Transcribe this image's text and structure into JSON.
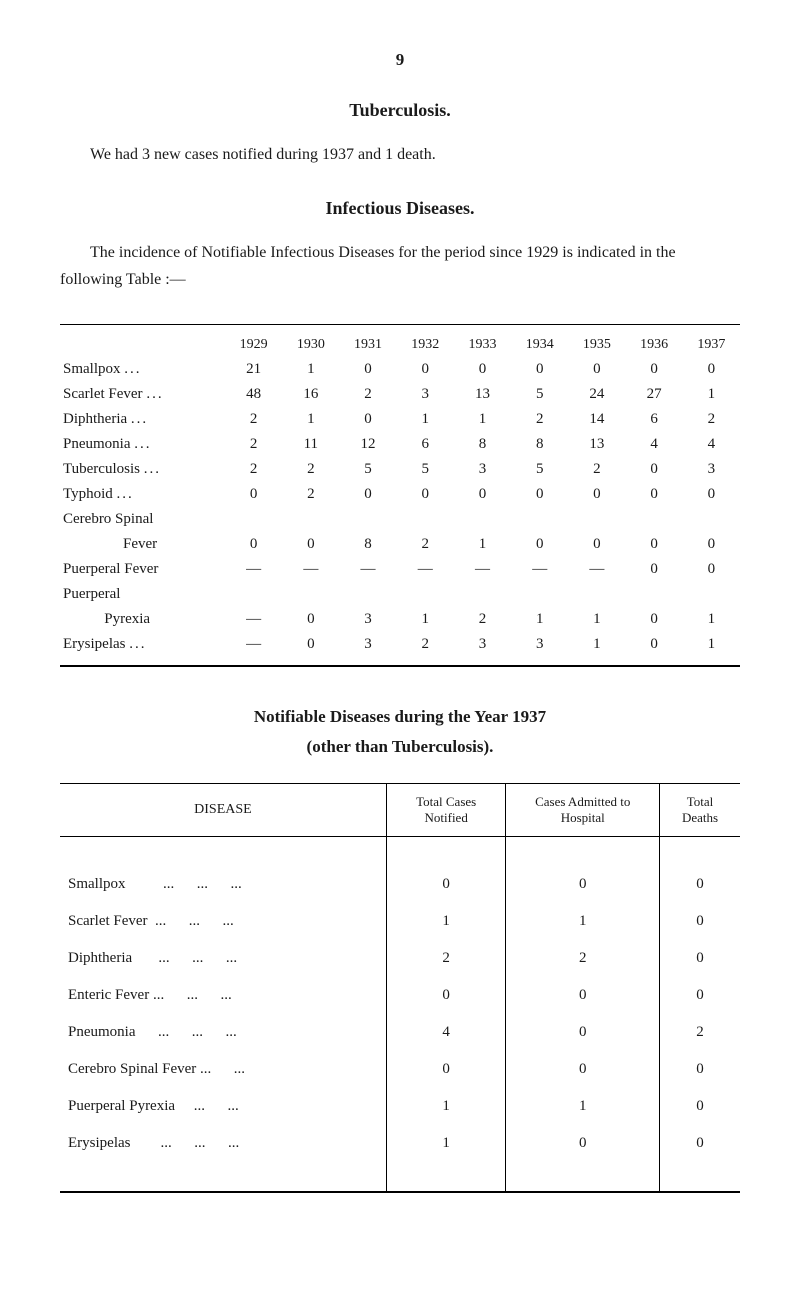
{
  "page_number": "9",
  "section1": {
    "title": "Tuberculosis.",
    "paragraph": "We had 3 new cases notified during 1937 and 1 death."
  },
  "section2": {
    "title": "Infectious Diseases.",
    "paragraph": "The incidence of Notifiable Infectious Diseases for the period since 1929 is indicated in the following Table :—"
  },
  "table1": {
    "years": [
      "1929",
      "1930",
      "1931",
      "1932",
      "1933",
      "1934",
      "1935",
      "1936",
      "1937"
    ],
    "rows": [
      {
        "label": "Smallpox",
        "ellipsis": "...",
        "values": [
          "21",
          "1",
          "0",
          "0",
          "0",
          "0",
          "0",
          "0",
          "0"
        ]
      },
      {
        "label": "Scarlet Fever",
        "ellipsis": "...",
        "values": [
          "48",
          "16",
          "2",
          "3",
          "13",
          "5",
          "24",
          "27",
          "1"
        ]
      },
      {
        "label": "Diphtheria",
        "ellipsis": "...",
        "values": [
          "2",
          "1",
          "0",
          "1",
          "1",
          "2",
          "14",
          "6",
          "2"
        ]
      },
      {
        "label": "Pneumonia",
        "ellipsis": "...",
        "values": [
          "2",
          "11",
          "12",
          "6",
          "8",
          "8",
          "13",
          "4",
          "4"
        ]
      },
      {
        "label": "Tuberculosis",
        "ellipsis": "...",
        "values": [
          "2",
          "2",
          "5",
          "5",
          "3",
          "5",
          "2",
          "0",
          "3"
        ]
      },
      {
        "label": "Typhoid",
        "ellipsis": "...",
        "values": [
          "0",
          "2",
          "0",
          "0",
          "0",
          "0",
          "0",
          "0",
          "0"
        ]
      },
      {
        "label": "Cerebro Spinal",
        "ellipsis": "",
        "values": [
          "",
          "",
          "",
          "",
          "",
          "",
          "",
          "",
          ""
        ]
      },
      {
        "label": "                Fever",
        "ellipsis": "",
        "values": [
          "0",
          "0",
          "8",
          "2",
          "1",
          "0",
          "0",
          "0",
          "0"
        ]
      },
      {
        "label": "Puerperal Fever",
        "ellipsis": "",
        "values": [
          "—",
          "—",
          "—",
          "—",
          "—",
          "—",
          "—",
          "0",
          "0"
        ]
      },
      {
        "label": "Puerperal",
        "ellipsis": "",
        "values": [
          "",
          "",
          "",
          "",
          "",
          "",
          "",
          "",
          ""
        ]
      },
      {
        "label": "           Pyrexia",
        "ellipsis": "",
        "values": [
          "—",
          "0",
          "3",
          "1",
          "2",
          "1",
          "1",
          "0",
          "1"
        ]
      },
      {
        "label": "Erysipelas",
        "ellipsis": "...",
        "values": [
          "—",
          "0",
          "3",
          "2",
          "3",
          "3",
          "1",
          "0",
          "1"
        ]
      }
    ]
  },
  "section3": {
    "title_line1": "Notifiable Diseases during the Year 1937",
    "title_line2": "(other than Tuberculosis)."
  },
  "table2": {
    "headers": [
      "DISEASE",
      "Total Cases Notified",
      "Cases Admitted to Hospital",
      "Total Deaths"
    ],
    "rows": [
      {
        "label": "Smallpox          ...      ...      ...",
        "values": [
          "0",
          "0",
          "0"
        ]
      },
      {
        "label": "Scarlet Fever  ...      ...      ...",
        "values": [
          "1",
          "1",
          "0"
        ]
      },
      {
        "label": "Diphtheria       ...      ...      ...",
        "values": [
          "2",
          "2",
          "0"
        ]
      },
      {
        "label": "Enteric Fever ...      ...      ...",
        "values": [
          "0",
          "0",
          "0"
        ]
      },
      {
        "label": "Pneumonia      ...      ...      ...",
        "values": [
          "4",
          "0",
          "2"
        ]
      },
      {
        "label": "Cerebro Spinal Fever ...      ...",
        "values": [
          "0",
          "0",
          "0"
        ]
      },
      {
        "label": "Puerperal Pyrexia     ...      ...",
        "values": [
          "1",
          "1",
          "0"
        ]
      },
      {
        "label": "Erysipelas        ...      ...      ...",
        "values": [
          "1",
          "0",
          "0"
        ]
      }
    ]
  }
}
